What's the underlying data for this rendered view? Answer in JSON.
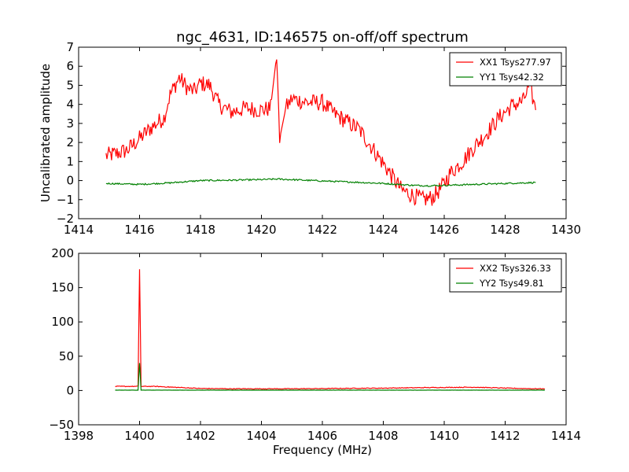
{
  "figure": {
    "title": "ngc_4631, ID:146575 on-off/off spectrum"
  },
  "chart_data": [
    {
      "type": "line",
      "title": "ngc_4631, ID:146575 on-off/off spectrum",
      "xlabel": "",
      "ylabel": "Uncalibrated amplitude",
      "xlim": [
        1414,
        1430
      ],
      "ylim": [
        -2,
        7
      ],
      "xticks": [
        1414,
        1416,
        1418,
        1420,
        1422,
        1424,
        1426,
        1428,
        1430
      ],
      "yticks": [
        -2,
        -1,
        0,
        1,
        2,
        3,
        4,
        5,
        6,
        7
      ],
      "xtick_labels": [
        "1414",
        "1416",
        "1418",
        "1420",
        "1422",
        "1424",
        "1426",
        "1428",
        "1430"
      ],
      "ytick_labels": [
        "−2",
        "−1",
        "0",
        "1",
        "2",
        "3",
        "4",
        "5",
        "6",
        "7"
      ],
      "legend_position": "top-right",
      "series": [
        {
          "name": "XX1 Tsys277.97",
          "color": "#ff0000",
          "x": [
            1414.9,
            1415.2,
            1415.6,
            1416.0,
            1416.4,
            1416.8,
            1417.0,
            1417.3,
            1417.6,
            1417.8,
            1418.0,
            1418.3,
            1418.6,
            1419.0,
            1419.5,
            1420.0,
            1420.3,
            1420.5,
            1420.6,
            1420.8,
            1421.0,
            1421.5,
            1422.0,
            1422.4,
            1422.8,
            1423.2,
            1423.6,
            1424.0,
            1424.3,
            1424.6,
            1425.0,
            1425.3,
            1425.6,
            1425.9,
            1426.2,
            1426.6,
            1427.0,
            1427.4,
            1427.8,
            1428.2,
            1428.6,
            1428.8,
            1429.0
          ],
          "y": [
            1.3,
            1.4,
            1.6,
            2.2,
            2.8,
            3.3,
            4.5,
            5.4,
            4.8,
            4.7,
            5.1,
            5.0,
            4.0,
            3.6,
            3.8,
            3.7,
            3.8,
            6.6,
            2.2,
            3.8,
            4.3,
            4.1,
            4.1,
            3.5,
            3.1,
            2.7,
            1.8,
            0.9,
            0.2,
            -0.5,
            -0.8,
            -1.0,
            -0.9,
            -0.4,
            0.4,
            1.0,
            1.8,
            2.5,
            3.3,
            3.9,
            4.2,
            5.0,
            3.7
          ]
        },
        {
          "name": "YY1 Tsys42.32",
          "color": "#008000",
          "x": [
            1414.9,
            1416.0,
            1417.0,
            1418.0,
            1419.0,
            1420.0,
            1420.5,
            1421.0,
            1422.0,
            1423.0,
            1424.0,
            1424.5,
            1425.0,
            1425.5,
            1426.0,
            1427.0,
            1428.0,
            1429.0
          ],
          "y": [
            -0.15,
            -0.2,
            -0.12,
            0.0,
            0.02,
            0.05,
            0.08,
            0.05,
            -0.02,
            -0.08,
            -0.15,
            -0.2,
            -0.25,
            -0.27,
            -0.25,
            -0.2,
            -0.15,
            -0.1
          ]
        }
      ]
    },
    {
      "type": "line",
      "title": "",
      "xlabel": "Frequency (MHz)",
      "ylabel": "",
      "xlim": [
        1398,
        1414
      ],
      "ylim": [
        -50,
        200
      ],
      "xticks": [
        1398,
        1400,
        1402,
        1404,
        1406,
        1408,
        1410,
        1412,
        1414
      ],
      "yticks": [
        -50,
        0,
        50,
        100,
        150,
        200
      ],
      "xtick_labels": [
        "1398",
        "1400",
        "1402",
        "1404",
        "1406",
        "1408",
        "1410",
        "1412",
        "1414"
      ],
      "ytick_labels": [
        "−50",
        "0",
        "50",
        "100",
        "150",
        "200"
      ],
      "legend_position": "top-right",
      "series": [
        {
          "name": "XX2 Tsys326.33",
          "color": "#ff0000",
          "x": [
            1399.2,
            1399.6,
            1399.95,
            1400.0,
            1400.05,
            1400.5,
            1401.0,
            1401.5,
            1402.0,
            1403.0,
            1404.0,
            1405.0,
            1406.0,
            1407.0,
            1408.0,
            1409.0,
            1410.0,
            1411.0,
            1412.0,
            1413.0,
            1413.3
          ],
          "y": [
            6,
            6,
            6,
            177,
            6,
            6,
            5,
            4,
            3,
            2.5,
            2.5,
            2.5,
            2.8,
            3.2,
            3.5,
            4.0,
            4.5,
            4.8,
            3.5,
            2.5,
            2.5
          ]
        },
        {
          "name": "YY2 Tsys49.81",
          "color": "#008000",
          "x": [
            1399.2,
            1399.95,
            1400.0,
            1400.05,
            1401.0,
            1402.0,
            1404.0,
            1406.0,
            1408.0,
            1410.0,
            1412.0,
            1413.3
          ],
          "y": [
            0.5,
            0.5,
            40,
            0.5,
            0.5,
            0.5,
            0.5,
            0.5,
            0.5,
            0.5,
            0.5,
            0.5
          ]
        }
      ]
    }
  ]
}
